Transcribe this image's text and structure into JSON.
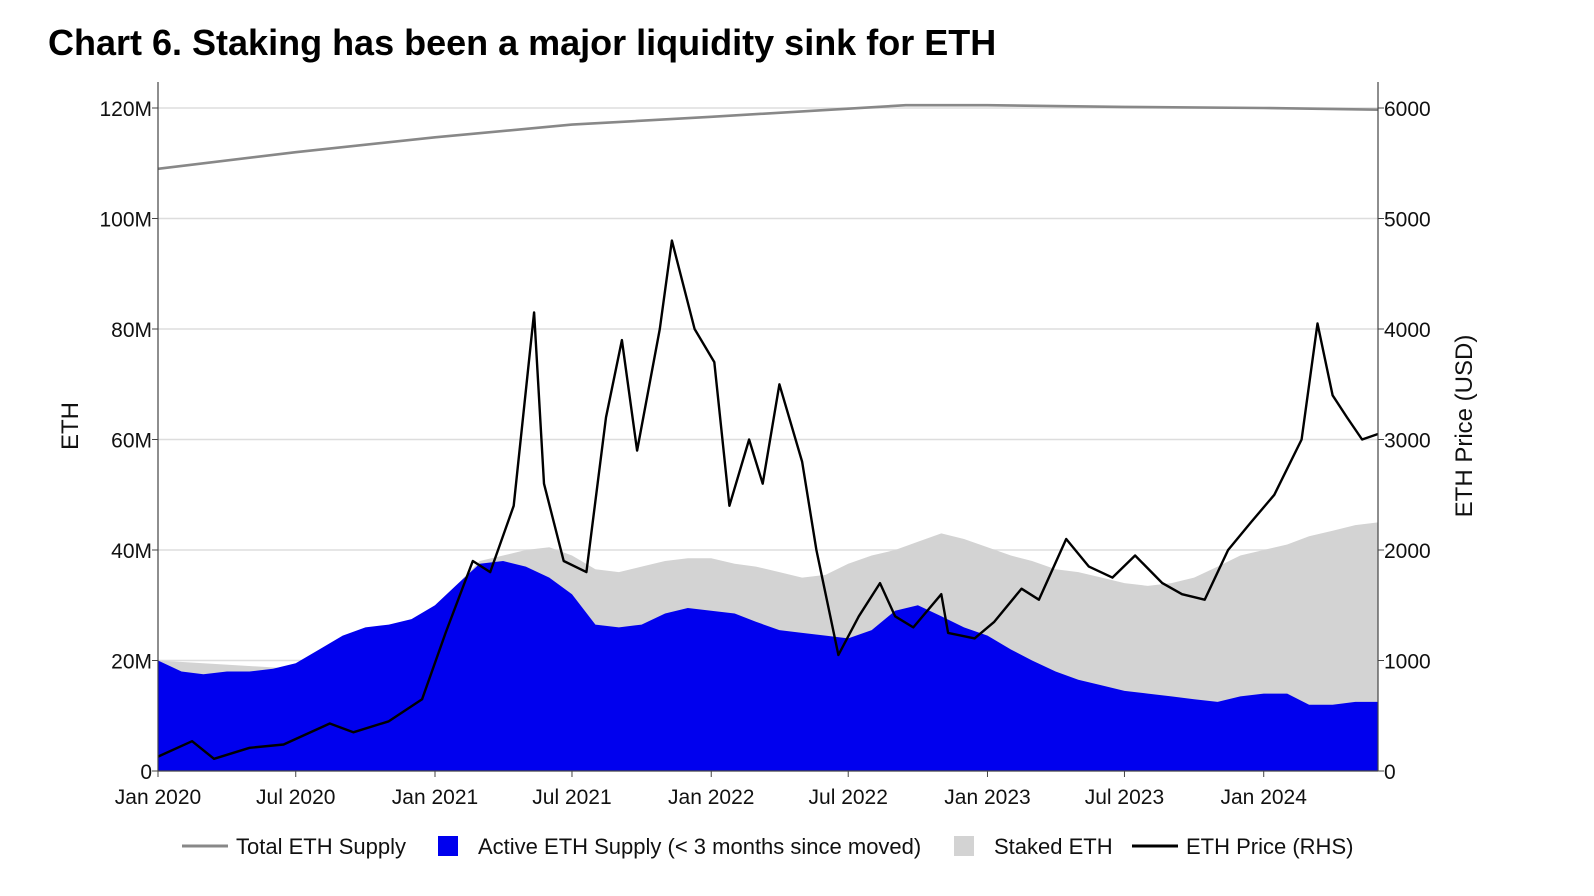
{
  "chart_data": {
    "type": "area",
    "title": "Chart 6. Staking has been a major liquidity sink for ETH",
    "ylabel": "ETH",
    "y2label": "ETH Price (USD)",
    "ylim": [
      0,
      120000000
    ],
    "y2lim": [
      0,
      6000
    ],
    "xlim": [
      "2020-01-01",
      "2024-05-31"
    ],
    "grid": true,
    "legend_position": "bottom",
    "y_ticks": [
      {
        "value": 0,
        "label": "0"
      },
      {
        "value": 20000000,
        "label": "20M"
      },
      {
        "value": 40000000,
        "label": "40M"
      },
      {
        "value": 60000000,
        "label": "60M"
      },
      {
        "value": 80000000,
        "label": "80M"
      },
      {
        "value": 100000000,
        "label": "100M"
      },
      {
        "value": 120000000,
        "label": "120M"
      }
    ],
    "y2_ticks": [
      {
        "value": 0,
        "label": "0"
      },
      {
        "value": 1000,
        "label": "1000"
      },
      {
        "value": 2000,
        "label": "2000"
      },
      {
        "value": 3000,
        "label": "3000"
      },
      {
        "value": 4000,
        "label": "4000"
      },
      {
        "value": 5000,
        "label": "5000"
      },
      {
        "value": 6000,
        "label": "6000"
      }
    ],
    "x_ticks": [
      {
        "value": "2020-01-01",
        "label": "Jan 2020"
      },
      {
        "value": "2020-07-01",
        "label": "Jul 2020"
      },
      {
        "value": "2021-01-01",
        "label": "Jan 2021"
      },
      {
        "value": "2021-07-01",
        "label": "Jul 2021"
      },
      {
        "value": "2022-01-01",
        "label": "Jan 2022"
      },
      {
        "value": "2022-07-01",
        "label": "Jul 2022"
      },
      {
        "value": "2023-01-01",
        "label": "Jan 2023"
      },
      {
        "value": "2023-07-01",
        "label": "Jul 2023"
      },
      {
        "value": "2024-01-01",
        "label": "Jan 2024"
      }
    ],
    "series": [
      {
        "name": "Total ETH Supply",
        "style": "line",
        "axis": "left",
        "color": "#888888",
        "x": [
          "2020-01-01",
          "2020-07-01",
          "2021-01-01",
          "2021-07-01",
          "2022-01-01",
          "2022-09-15",
          "2023-01-01",
          "2023-07-01",
          "2024-01-01",
          "2024-05-31"
        ],
        "values": [
          109000000,
          112000000,
          114700000,
          117000000,
          118400000,
          120500000,
          120500000,
          120200000,
          120000000,
          119700000
        ]
      },
      {
        "name": "Staked ETH",
        "style": "area",
        "axis": "left",
        "color": "#d3d3d3",
        "x": [
          "2020-01-01",
          "2020-07-01",
          "2020-11-01",
          "2020-12-15",
          "2021-01-01",
          "2021-02-01",
          "2021-03-01",
          "2021-04-01",
          "2021-05-01",
          "2021-06-01",
          "2021-07-01",
          "2021-08-01",
          "2021-09-01",
          "2021-10-01",
          "2021-11-01",
          "2021-12-01",
          "2022-01-01",
          "2022-02-01",
          "2022-03-01",
          "2022-04-01",
          "2022-05-01",
          "2022-06-01",
          "2022-07-01",
          "2022-08-01",
          "2022-09-01",
          "2022-10-01",
          "2022-11-01",
          "2022-12-01",
          "2023-01-01",
          "2023-02-01",
          "2023-03-01",
          "2023-04-01",
          "2023-05-01",
          "2023-06-01",
          "2023-07-01",
          "2023-08-01",
          "2023-09-01",
          "2023-10-01",
          "2023-11-01",
          "2023-12-01",
          "2024-01-01",
          "2024-02-01",
          "2024-03-01",
          "2024-04-01",
          "2024-05-01",
          "2024-05-31"
        ],
        "values": [
          20000000,
          18500000,
          25500000,
          27000000,
          30000000,
          34000000,
          38000000,
          39000000,
          40000000,
          40500000,
          39000000,
          36500000,
          36000000,
          37000000,
          38000000,
          38500000,
          38500000,
          37500000,
          37000000,
          36000000,
          35000000,
          35500000,
          37500000,
          39000000,
          40000000,
          41500000,
          43000000,
          42000000,
          40500000,
          39000000,
          38000000,
          36500000,
          36000000,
          35000000,
          34000000,
          33500000,
          34000000,
          35000000,
          37000000,
          39000000,
          40000000,
          41000000,
          42500000,
          43500000,
          44500000,
          45000000
        ]
      },
      {
        "name": "Active ETH Supply (< 3 months since moved)",
        "style": "area",
        "axis": "left",
        "color": "#0000ee",
        "x": [
          "2020-01-01",
          "2020-02-01",
          "2020-03-01",
          "2020-04-01",
          "2020-05-01",
          "2020-06-01",
          "2020-07-01",
          "2020-08-01",
          "2020-09-01",
          "2020-10-01",
          "2020-11-01",
          "2020-12-01",
          "2021-01-01",
          "2021-02-01",
          "2021-03-01",
          "2021-04-01",
          "2021-05-01",
          "2021-06-01",
          "2021-07-01",
          "2021-08-01",
          "2021-09-01",
          "2021-10-01",
          "2021-11-01",
          "2021-12-01",
          "2022-01-01",
          "2022-02-01",
          "2022-03-01",
          "2022-04-01",
          "2022-05-01",
          "2022-06-01",
          "2022-07-01",
          "2022-08-01",
          "2022-09-01",
          "2022-10-01",
          "2022-11-01",
          "2022-12-01",
          "2023-01-01",
          "2023-02-01",
          "2023-03-01",
          "2023-04-01",
          "2023-05-01",
          "2023-06-01",
          "2023-07-01",
          "2023-08-01",
          "2023-09-01",
          "2023-10-01",
          "2023-11-01",
          "2023-12-01",
          "2024-01-01",
          "2024-02-01",
          "2024-03-01",
          "2024-04-01",
          "2024-05-01",
          "2024-05-31"
        ],
        "values": [
          20000000,
          18000000,
          17500000,
          18000000,
          18000000,
          18500000,
          19500000,
          22000000,
          24500000,
          26000000,
          26500000,
          27500000,
          30000000,
          34000000,
          37500000,
          38000000,
          37000000,
          35000000,
          32000000,
          26500000,
          26000000,
          26500000,
          28500000,
          29500000,
          29000000,
          28500000,
          27000000,
          25500000,
          25000000,
          24500000,
          24000000,
          25500000,
          29000000,
          30000000,
          28000000,
          26000000,
          24500000,
          22000000,
          20000000,
          18000000,
          16500000,
          15500000,
          14500000,
          14000000,
          13500000,
          13000000,
          12500000,
          13500000,
          14000000,
          14000000,
          12000000,
          12000000,
          12500000,
          12500000
        ]
      },
      {
        "name": "ETH Price (RHS)",
        "style": "line",
        "axis": "right",
        "color": "#000000",
        "x": [
          "2020-01-01",
          "2020-02-15",
          "2020-03-15",
          "2020-05-01",
          "2020-06-15",
          "2020-08-15",
          "2020-09-15",
          "2020-11-01",
          "2020-12-15",
          "2021-01-15",
          "2021-02-20",
          "2021-03-15",
          "2021-04-15",
          "2021-05-12",
          "2021-05-25",
          "2021-06-20",
          "2021-07-20",
          "2021-08-15",
          "2021-09-05",
          "2021-09-25",
          "2021-10-25",
          "2021-11-10",
          "2021-12-10",
          "2022-01-05",
          "2022-01-25",
          "2022-02-20",
          "2022-03-10",
          "2022-04-01",
          "2022-05-01",
          "2022-05-20",
          "2022-06-18",
          "2022-07-15",
          "2022-08-12",
          "2022-09-01",
          "2022-09-25",
          "2022-11-01",
          "2022-11-10",
          "2022-12-15",
          "2023-01-10",
          "2023-02-15",
          "2023-03-10",
          "2023-04-15",
          "2023-05-15",
          "2023-06-15",
          "2023-07-15",
          "2023-08-20",
          "2023-09-15",
          "2023-10-15",
          "2023-11-15",
          "2023-12-15",
          "2024-01-15",
          "2024-02-20",
          "2024-03-12",
          "2024-04-01",
          "2024-04-20",
          "2024-05-10",
          "2024-05-31"
        ],
        "values": [
          130,
          270,
          110,
          210,
          240,
          430,
          350,
          450,
          650,
          1250,
          1900,
          1800,
          2400,
          4150,
          2600,
          1900,
          1800,
          3200,
          3900,
          2900,
          4000,
          4800,
          4000,
          3700,
          2400,
          3000,
          2600,
          3500,
          2800,
          2000,
          1050,
          1400,
          1700,
          1400,
          1300,
          1600,
          1250,
          1200,
          1350,
          1650,
          1550,
          2100,
          1850,
          1750,
          1950,
          1700,
          1600,
          1550,
          2000,
          2250,
          2500,
          3000,
          4050,
          3400,
          3200,
          3000,
          3050
        ]
      }
    ]
  }
}
